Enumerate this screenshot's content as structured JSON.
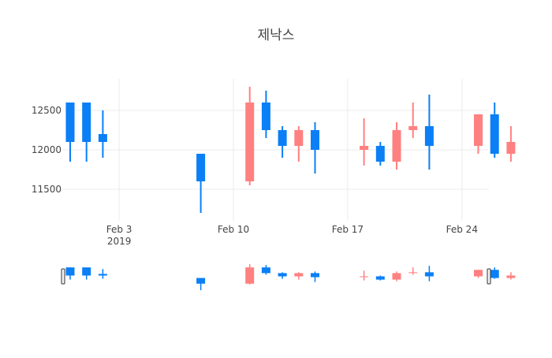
{
  "chart_data": {
    "type": "candlestick",
    "title": "제낙스",
    "xlabel": "",
    "ylabel": "",
    "ylim": [
      11100,
      12900
    ],
    "grid": true,
    "legend": "none",
    "x_ticks": [
      {
        "date": "2019-02-03",
        "label": "Feb 3",
        "sublabel": "2019"
      },
      {
        "date": "2019-02-10",
        "label": "Feb 10",
        "sublabel": ""
      },
      {
        "date": "2019-02-17",
        "label": "Feb 17",
        "sublabel": ""
      },
      {
        "date": "2019-02-24",
        "label": "Feb 24",
        "sublabel": ""
      }
    ],
    "y_ticks": [
      {
        "value": 11500,
        "label": "11500"
      },
      {
        "value": 12000,
        "label": "12000"
      },
      {
        "value": 12500,
        "label": "12500"
      }
    ],
    "colors": {
      "increasing": "#ff8080",
      "decreasing": "#0a7ff6",
      "grid": "#ebebeb",
      "text": "#444444"
    },
    "xrange": [
      "2019-01-31",
      "2019-02-26"
    ],
    "candles": [
      {
        "date": "2019-01-31",
        "open": 12600,
        "high": 12600,
        "low": 11850,
        "close": 12100
      },
      {
        "date": "2019-02-01",
        "open": 12600,
        "high": 12600,
        "low": 11850,
        "close": 12100
      },
      {
        "date": "2019-02-02",
        "open": 12200,
        "high": 12500,
        "low": 11900,
        "close": 12100
      },
      {
        "date": "2019-02-08",
        "open": 11950,
        "high": 11950,
        "low": 11200,
        "close": 11600
      },
      {
        "date": "2019-02-11",
        "open": 11600,
        "high": 12800,
        "low": 11550,
        "close": 12600
      },
      {
        "date": "2019-02-12",
        "open": 12600,
        "high": 12750,
        "low": 12150,
        "close": 12250
      },
      {
        "date": "2019-02-13",
        "open": 12250,
        "high": 12300,
        "low": 11900,
        "close": 12050
      },
      {
        "date": "2019-02-14",
        "open": 12050,
        "high": 12300,
        "low": 11850,
        "close": 12250
      },
      {
        "date": "2019-02-15",
        "open": 12250,
        "high": 12350,
        "low": 11700,
        "close": 12000
      },
      {
        "date": "2019-02-18",
        "open": 12000,
        "high": 12400,
        "low": 11800,
        "close": 12050
      },
      {
        "date": "2019-02-19",
        "open": 12050,
        "high": 12100,
        "low": 11800,
        "close": 11850
      },
      {
        "date": "2019-02-20",
        "open": 11850,
        "high": 12350,
        "low": 11750,
        "close": 12250
      },
      {
        "date": "2019-02-21",
        "open": 12250,
        "high": 12600,
        "low": 12150,
        "close": 12300
      },
      {
        "date": "2019-02-22",
        "open": 12300,
        "high": 12700,
        "low": 11750,
        "close": 12050
      },
      {
        "date": "2019-02-25",
        "open": 12050,
        "high": 12450,
        "low": 11950,
        "close": 12450
      },
      {
        "date": "2019-02-26",
        "open": 12450,
        "high": 12600,
        "low": 11900,
        "close": 11950
      },
      {
        "date": "2019-02-27",
        "open": 11950,
        "high": 12300,
        "low": 11850,
        "close": 12100
      }
    ],
    "rangeslider": true
  }
}
